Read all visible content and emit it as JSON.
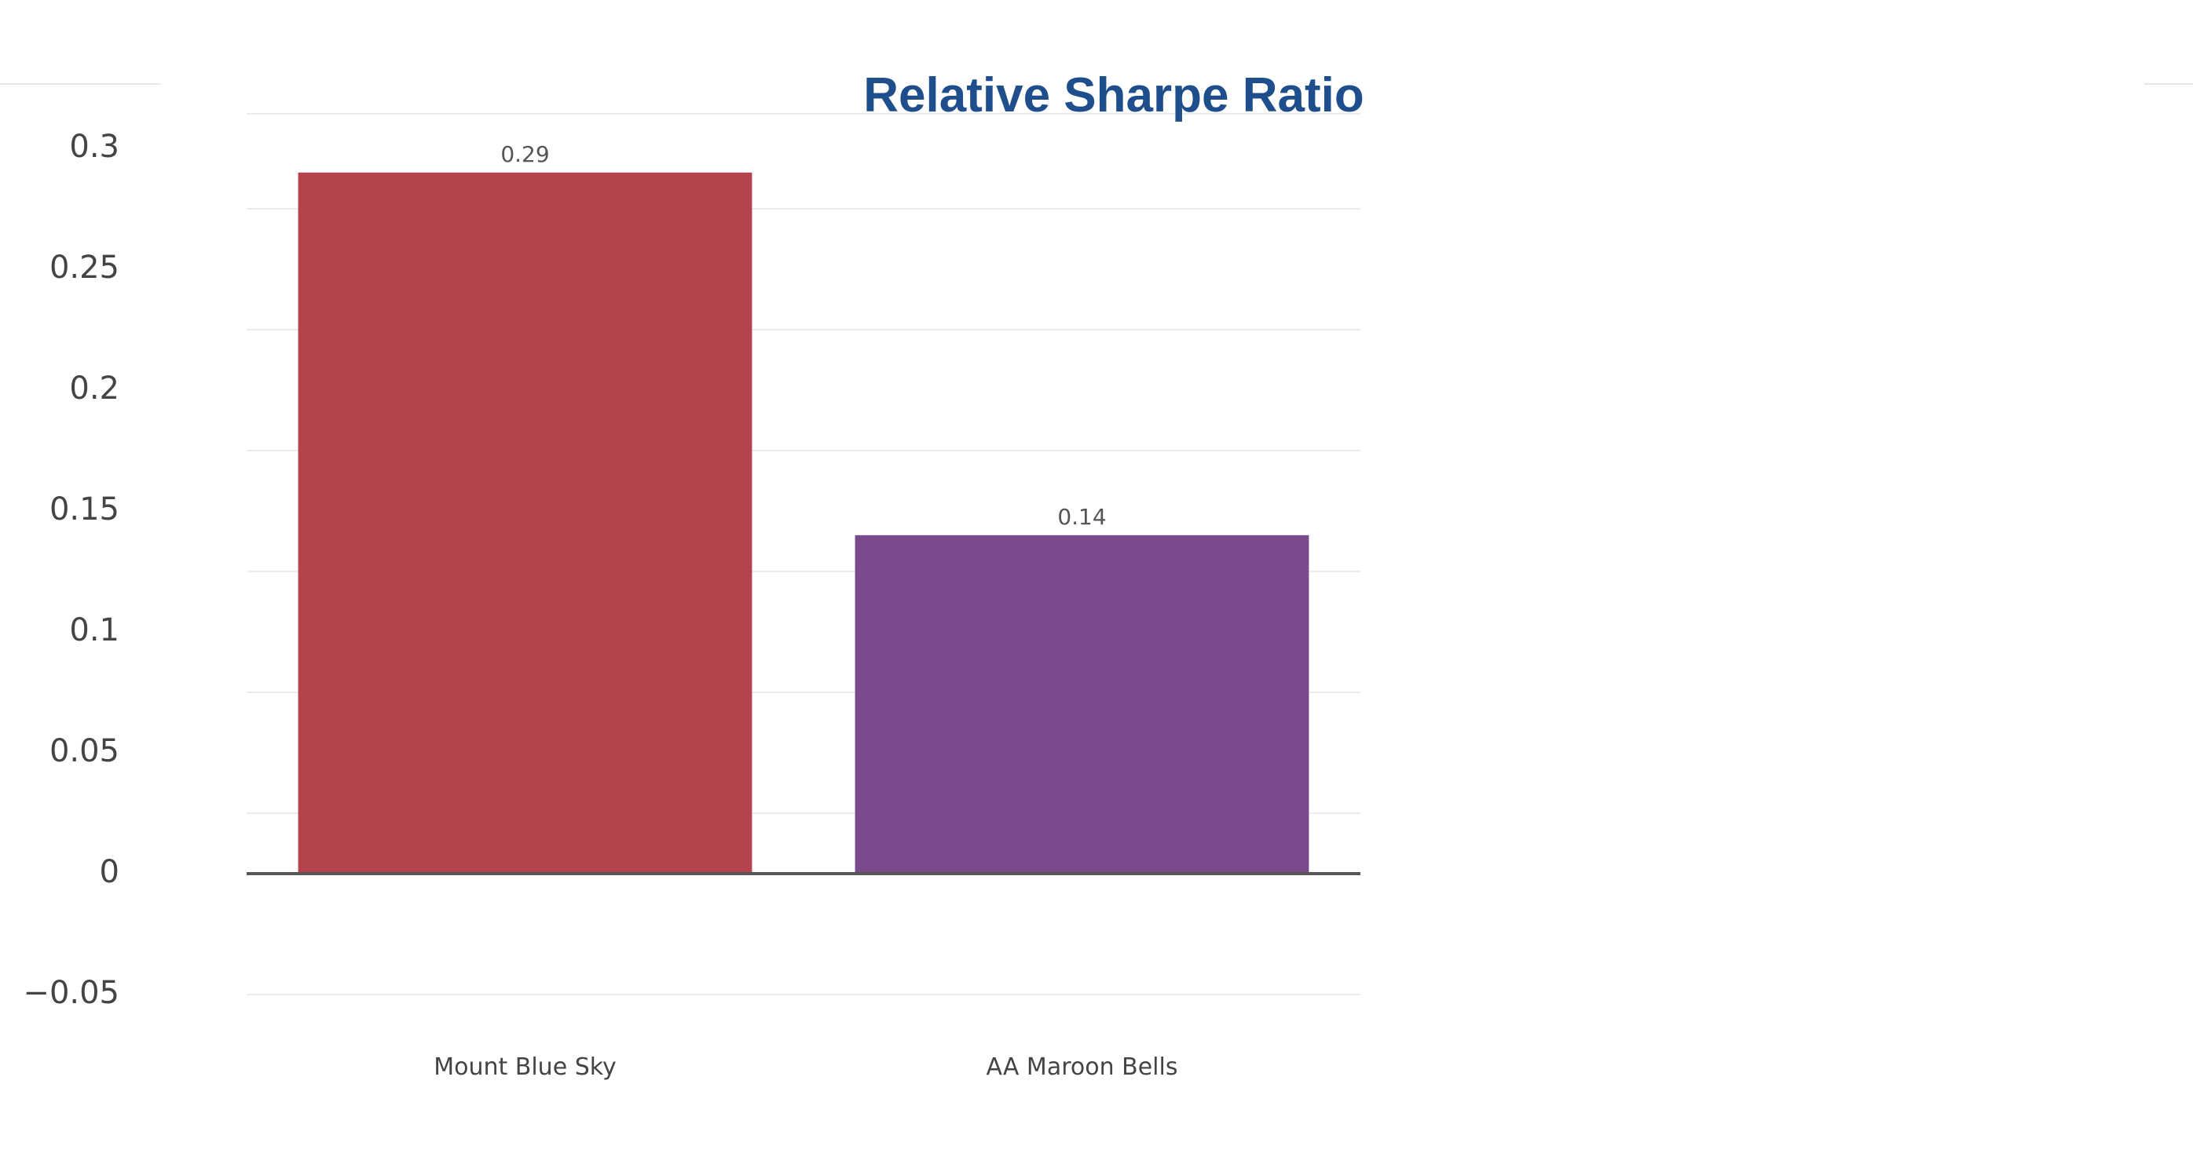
{
  "chart_data": {
    "type": "bar",
    "title": "Relative Sharpe Ratio",
    "xlabel": "",
    "ylabel": "",
    "categories": [
      "Mount Blue Sky",
      "AA Maroon Bells"
    ],
    "values": [
      0.29,
      0.14
    ],
    "data_labels": [
      "0.29",
      "0.14"
    ],
    "colors": [
      "#b5434d",
      "#7b4a8c"
    ],
    "title_color": "#1f4e8c",
    "ylim": [
      -0.05,
      0.3
    ],
    "yticks": [
      0.3,
      0.25,
      0.2,
      0.15,
      0.1,
      0.05,
      0,
      -0.05
    ],
    "ytick_labels": [
      "0.3",
      "0.25",
      "0.2",
      "0.15",
      "0.1",
      "0.05",
      "0",
      "−0.05"
    ],
    "grid": true,
    "legend": "none"
  }
}
